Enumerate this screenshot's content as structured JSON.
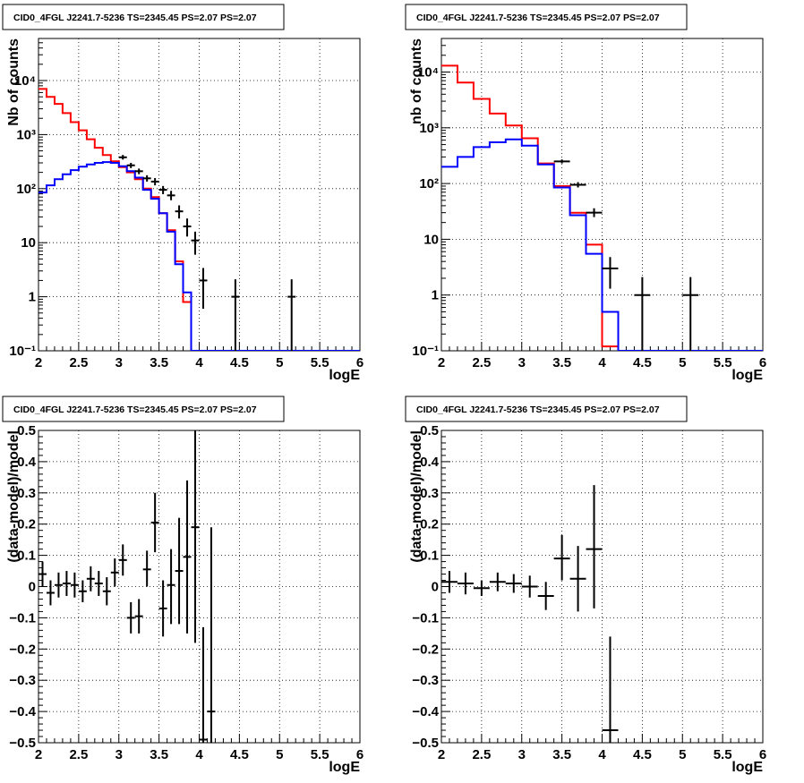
{
  "chart_data": [
    {
      "type": "line",
      "title": "CID0_4FGL J2241.7-5236 TS=2345.45 PS=2.07 PS=2.07",
      "xlabel": "logE",
      "ylabel": "Nb of counts",
      "yscale": "log",
      "xlim": [
        2,
        6
      ],
      "ylim": [
        0.1,
        60000
      ],
      "grid": true,
      "xticks": [
        {
          "v": 2,
          "t": "2"
        },
        {
          "v": 2.5,
          "t": "2.5"
        },
        {
          "v": 3,
          "t": "3"
        },
        {
          "v": 3.5,
          "t": "3.5"
        },
        {
          "v": 4,
          "t": "4"
        },
        {
          "v": 4.5,
          "t": "4.5"
        },
        {
          "v": 5,
          "t": "5"
        },
        {
          "v": 5.5,
          "t": "5.5"
        },
        {
          "v": 6,
          "t": "6"
        }
      ],
      "yticks": [
        {
          "v": 0.1,
          "t": "10⁻¹"
        },
        {
          "v": 1,
          "t": "1"
        },
        {
          "v": 10,
          "t": "10"
        },
        {
          "v": 100,
          "t": "10²"
        },
        {
          "v": 1000,
          "t": "10³"
        },
        {
          "v": 10000,
          "t": "10⁴"
        }
      ],
      "bins": {
        "start": 2,
        "width": 0.1
      },
      "series": [
        {
          "color": "#ff0000",
          "values": [
            7000,
            5000,
            3700,
            2500,
            1700,
            1200,
            820,
            570,
            420,
            320,
            250,
            200,
            150,
            100,
            70,
            35,
            17,
            4.5,
            0.8,
            0.1,
            0.08,
            0.08,
            0.08,
            0.08,
            0.08,
            0.08,
            0.08,
            0.08,
            0.08,
            0.08,
            0.08,
            0.08,
            0.08,
            0.08,
            0.08,
            0.08,
            0.08,
            0.08,
            0.08,
            0.08
          ]
        },
        {
          "color": "#0000ff",
          "values": [
            85,
            115,
            150,
            185,
            220,
            255,
            280,
            300,
            310,
            300,
            260,
            210,
            160,
            95,
            65,
            35,
            16,
            4,
            1.2,
            0.1,
            0.1,
            0.1,
            0.1,
            0.1,
            0.1,
            0.1,
            0.1,
            0.1,
            0.1,
            0.1,
            0.1,
            0.1,
            0.1,
            0.1,
            0.1,
            0.1,
            0.1,
            0.1,
            0.1,
            0.1
          ]
        }
      ],
      "points": [
        {
          "x": 3.05,
          "y": 380,
          "lo": 345,
          "hi": 420,
          "xerr": 0.05
        },
        {
          "x": 3.15,
          "y": 270,
          "lo": 240,
          "hi": 300,
          "xerr": 0.05
        },
        {
          "x": 3.25,
          "y": 210,
          "lo": 185,
          "hi": 235,
          "xerr": 0.05
        },
        {
          "x": 3.35,
          "y": 155,
          "lo": 135,
          "hi": 177,
          "xerr": 0.05
        },
        {
          "x": 3.45,
          "y": 135,
          "lo": 115,
          "hi": 157,
          "xerr": 0.05
        },
        {
          "x": 3.55,
          "y": 95,
          "lo": 79,
          "hi": 112,
          "xerr": 0.05
        },
        {
          "x": 3.65,
          "y": 75,
          "lo": 61,
          "hi": 91,
          "xerr": 0.05
        },
        {
          "x": 3.75,
          "y": 38,
          "lo": 28,
          "hi": 49,
          "xerr": 0.05
        },
        {
          "x": 3.85,
          "y": 20,
          "lo": 13,
          "hi": 28,
          "xerr": 0.05
        },
        {
          "x": 3.95,
          "y": 11,
          "lo": 6,
          "hi": 16,
          "xerr": 0.05
        },
        {
          "x": 4.05,
          "y": 2,
          "lo": 0.6,
          "hi": 3.4,
          "xerr": 0.05
        },
        {
          "x": 4.45,
          "y": 1,
          "lo": 0.1,
          "hi": 2.1,
          "xerr": 0.05
        },
        {
          "x": 5.15,
          "y": 1,
          "lo": 0.1,
          "hi": 2.1,
          "xerr": 0.05
        }
      ]
    },
    {
      "type": "line",
      "title": "CID0_4FGL J2241.7-5236 TS=2345.45 PS=2.07 PS=2.07",
      "xlabel": "logE",
      "ylabel": "nb of counts",
      "yscale": "log",
      "xlim": [
        2,
        6
      ],
      "ylim": [
        0.1,
        40000
      ],
      "grid": true,
      "xticks": [
        {
          "v": 2,
          "t": "2"
        },
        {
          "v": 2.5,
          "t": "2.5"
        },
        {
          "v": 3,
          "t": "3"
        },
        {
          "v": 3.5,
          "t": "3.5"
        },
        {
          "v": 4,
          "t": "4"
        },
        {
          "v": 4.5,
          "t": "4.5"
        },
        {
          "v": 5,
          "t": "5"
        },
        {
          "v": 5.5,
          "t": "5.5"
        },
        {
          "v": 6,
          "t": "6"
        }
      ],
      "yticks": [
        {
          "v": 0.1,
          "t": "10⁻¹"
        },
        {
          "v": 1,
          "t": "1"
        },
        {
          "v": 10,
          "t": "10"
        },
        {
          "v": 100,
          "t": "10²"
        },
        {
          "v": 1000,
          "t": "10³"
        },
        {
          "v": 10000,
          "t": "10⁴"
        }
      ],
      "bins": {
        "start": 2,
        "width": 0.2
      },
      "series": [
        {
          "color": "#ff0000",
          "values": [
            13000,
            6500,
            3300,
            1800,
            1100,
            650,
            230,
            90,
            30,
            8,
            0.12,
            0.1,
            0.1,
            0.1,
            0.1,
            0.1,
            0.1,
            0.1,
            0.1,
            0.1
          ]
        },
        {
          "color": "#0000ff",
          "values": [
            200,
            300,
            450,
            550,
            620,
            480,
            220,
            85,
            27,
            5.5,
            0.5,
            0.1,
            0.1,
            0.1,
            0.1,
            0.1,
            0.1,
            0.1,
            0.1,
            0.1
          ]
        }
      ],
      "points": [
        {
          "x": 3.5,
          "y": 250,
          "lo": 230,
          "hi": 270,
          "xerr": 0.1
        },
        {
          "x": 3.7,
          "y": 95,
          "lo": 85,
          "hi": 106,
          "xerr": 0.1
        },
        {
          "x": 3.9,
          "y": 30,
          "lo": 25,
          "hi": 36,
          "xerr": 0.1
        },
        {
          "x": 4.1,
          "y": 3,
          "lo": 1.3,
          "hi": 4.8,
          "xerr": 0.1
        },
        {
          "x": 4.5,
          "y": 1,
          "lo": 0.1,
          "hi": 2.1,
          "xerr": 0.1
        },
        {
          "x": 5.1,
          "y": 1,
          "lo": 0.1,
          "hi": 2.1,
          "xerr": 0.1
        }
      ]
    },
    {
      "type": "scatter",
      "title": "CID0_4FGL J2241.7-5236 TS=2345.45 PS=2.07 PS=2.07",
      "xlabel": "logE",
      "ylabel": "(data-model)/model",
      "yscale": "linear",
      "xlim": [
        2,
        6
      ],
      "ylim": [
        -0.5,
        0.5
      ],
      "grid": true,
      "xticks": [
        {
          "v": 2,
          "t": "2"
        },
        {
          "v": 2.5,
          "t": "2.5"
        },
        {
          "v": 3,
          "t": "3"
        },
        {
          "v": 3.5,
          "t": "3.5"
        },
        {
          "v": 4,
          "t": "4"
        },
        {
          "v": 4.5,
          "t": "4.5"
        },
        {
          "v": 5,
          "t": "5"
        },
        {
          "v": 5.5,
          "t": "5.5"
        },
        {
          "v": 6,
          "t": "6"
        }
      ],
      "yticks": [
        {
          "v": -0.5,
          "t": "−0.5"
        },
        {
          "v": -0.4,
          "t": "−0.4"
        },
        {
          "v": -0.3,
          "t": "−0.3"
        },
        {
          "v": -0.2,
          "t": "−0.2"
        },
        {
          "v": -0.1,
          "t": "−0.1"
        },
        {
          "v": 0,
          "t": "0"
        },
        {
          "v": 0.1,
          "t": "0.1"
        },
        {
          "v": 0.2,
          "t": "0.2"
        },
        {
          "v": 0.3,
          "t": "0.3"
        },
        {
          "v": 0.4,
          "t": "0.4"
        },
        {
          "v": 0.5,
          "t": "0.5"
        }
      ],
      "points": [
        {
          "x": 2.05,
          "y": 0.04,
          "lo": 0.0,
          "hi": 0.08,
          "xerr": 0.05
        },
        {
          "x": 2.15,
          "y": -0.02,
          "lo": -0.06,
          "hi": 0.02,
          "xerr": 0.05
        },
        {
          "x": 2.25,
          "y": 0.005,
          "lo": -0.035,
          "hi": 0.045,
          "xerr": 0.05
        },
        {
          "x": 2.35,
          "y": 0.01,
          "lo": -0.03,
          "hi": 0.05,
          "xerr": 0.05
        },
        {
          "x": 2.45,
          "y": 0.005,
          "lo": -0.035,
          "hi": 0.045,
          "xerr": 0.05
        },
        {
          "x": 2.55,
          "y": -0.015,
          "lo": -0.05,
          "hi": 0.02,
          "xerr": 0.05
        },
        {
          "x": 2.65,
          "y": 0.025,
          "lo": -0.015,
          "hi": 0.065,
          "xerr": 0.05
        },
        {
          "x": 2.75,
          "y": 0.01,
          "lo": -0.03,
          "hi": 0.05,
          "xerr": 0.05
        },
        {
          "x": 2.85,
          "y": -0.015,
          "lo": -0.06,
          "hi": 0.03,
          "xerr": 0.05
        },
        {
          "x": 2.95,
          "y": 0.045,
          "lo": 0.0,
          "hi": 0.09,
          "xerr": 0.05
        },
        {
          "x": 3.05,
          "y": 0.085,
          "lo": 0.035,
          "hi": 0.135,
          "xerr": 0.05
        },
        {
          "x": 3.15,
          "y": -0.1,
          "lo": -0.15,
          "hi": -0.05,
          "xerr": 0.05
        },
        {
          "x": 3.25,
          "y": -0.095,
          "lo": -0.15,
          "hi": -0.04,
          "xerr": 0.05
        },
        {
          "x": 3.35,
          "y": 0.055,
          "lo": 0.0,
          "hi": 0.115,
          "xerr": 0.05
        },
        {
          "x": 3.45,
          "y": 0.205,
          "lo": 0.11,
          "hi": 0.3,
          "xerr": 0.05
        },
        {
          "x": 3.55,
          "y": -0.07,
          "lo": -0.16,
          "hi": 0.02,
          "xerr": 0.05
        },
        {
          "x": 3.65,
          "y": 0.005,
          "lo": -0.12,
          "hi": 0.12,
          "xerr": 0.05
        },
        {
          "x": 3.75,
          "y": 0.05,
          "lo": -0.12,
          "hi": 0.22,
          "xerr": 0.05
        },
        {
          "x": 3.85,
          "y": 0.095,
          "lo": -0.15,
          "hi": 0.34,
          "xerr": 0.05
        },
        {
          "x": 3.95,
          "y": 0.19,
          "lo": -0.18,
          "hi": 0.5,
          "xerr": 0.05
        },
        {
          "x": 4.05,
          "y": -0.49,
          "lo": -0.5,
          "hi": -0.13,
          "xerr": 0.05
        },
        {
          "x": 4.15,
          "y": -0.4,
          "lo": -0.5,
          "hi": 0.19,
          "xerr": 0.05
        }
      ]
    },
    {
      "type": "scatter",
      "title": "CID0_4FGL J2241.7-5236 TS=2345.45 PS=2.07 PS=2.07",
      "xlabel": "logE",
      "ylabel": "(data-model)/model",
      "yscale": "linear",
      "xlim": [
        2,
        6
      ],
      "ylim": [
        -0.5,
        0.5
      ],
      "grid": true,
      "xticks": [
        {
          "v": 2,
          "t": "2"
        },
        {
          "v": 2.5,
          "t": "2.5"
        },
        {
          "v": 3,
          "t": "3"
        },
        {
          "v": 3.5,
          "t": "3.5"
        },
        {
          "v": 4,
          "t": "4"
        },
        {
          "v": 4.5,
          "t": "4.5"
        },
        {
          "v": 5,
          "t": "5"
        },
        {
          "v": 5.5,
          "t": "5.5"
        },
        {
          "v": 6,
          "t": "6"
        }
      ],
      "yticks": [
        {
          "v": -0.5,
          "t": "−0.5"
        },
        {
          "v": -0.4,
          "t": "−0.4"
        },
        {
          "v": -0.3,
          "t": "−0.3"
        },
        {
          "v": -0.2,
          "t": "−0.2"
        },
        {
          "v": -0.1,
          "t": "−0.1"
        },
        {
          "v": 0,
          "t": "0"
        },
        {
          "v": 0.1,
          "t": "0.1"
        },
        {
          "v": 0.2,
          "t": "0.2"
        },
        {
          "v": 0.3,
          "t": "0.3"
        },
        {
          "v": 0.4,
          "t": "0.4"
        },
        {
          "v": 0.5,
          "t": "0.5"
        }
      ],
      "points": [
        {
          "x": 2.1,
          "y": 0.015,
          "lo": -0.02,
          "hi": 0.05,
          "xerr": 0.1
        },
        {
          "x": 2.3,
          "y": 0.01,
          "lo": -0.025,
          "hi": 0.045,
          "xerr": 0.1
        },
        {
          "x": 2.5,
          "y": -0.005,
          "lo": -0.03,
          "hi": 0.02,
          "xerr": 0.1
        },
        {
          "x": 2.7,
          "y": 0.015,
          "lo": -0.015,
          "hi": 0.045,
          "xerr": 0.1
        },
        {
          "x": 2.9,
          "y": 0.01,
          "lo": -0.02,
          "hi": 0.04,
          "xerr": 0.1
        },
        {
          "x": 3.1,
          "y": 0.0,
          "lo": -0.035,
          "hi": 0.035,
          "xerr": 0.1
        },
        {
          "x": 3.3,
          "y": -0.03,
          "lo": -0.075,
          "hi": 0.015,
          "xerr": 0.1
        },
        {
          "x": 3.5,
          "y": 0.09,
          "lo": 0.02,
          "hi": 0.165,
          "xerr": 0.1
        },
        {
          "x": 3.7,
          "y": 0.025,
          "lo": -0.08,
          "hi": 0.13,
          "xerr": 0.1
        },
        {
          "x": 3.9,
          "y": 0.12,
          "lo": -0.07,
          "hi": 0.325,
          "xerr": 0.1
        },
        {
          "x": 4.1,
          "y": -0.46,
          "lo": -0.5,
          "hi": -0.16,
          "xerr": 0.1
        }
      ]
    }
  ]
}
